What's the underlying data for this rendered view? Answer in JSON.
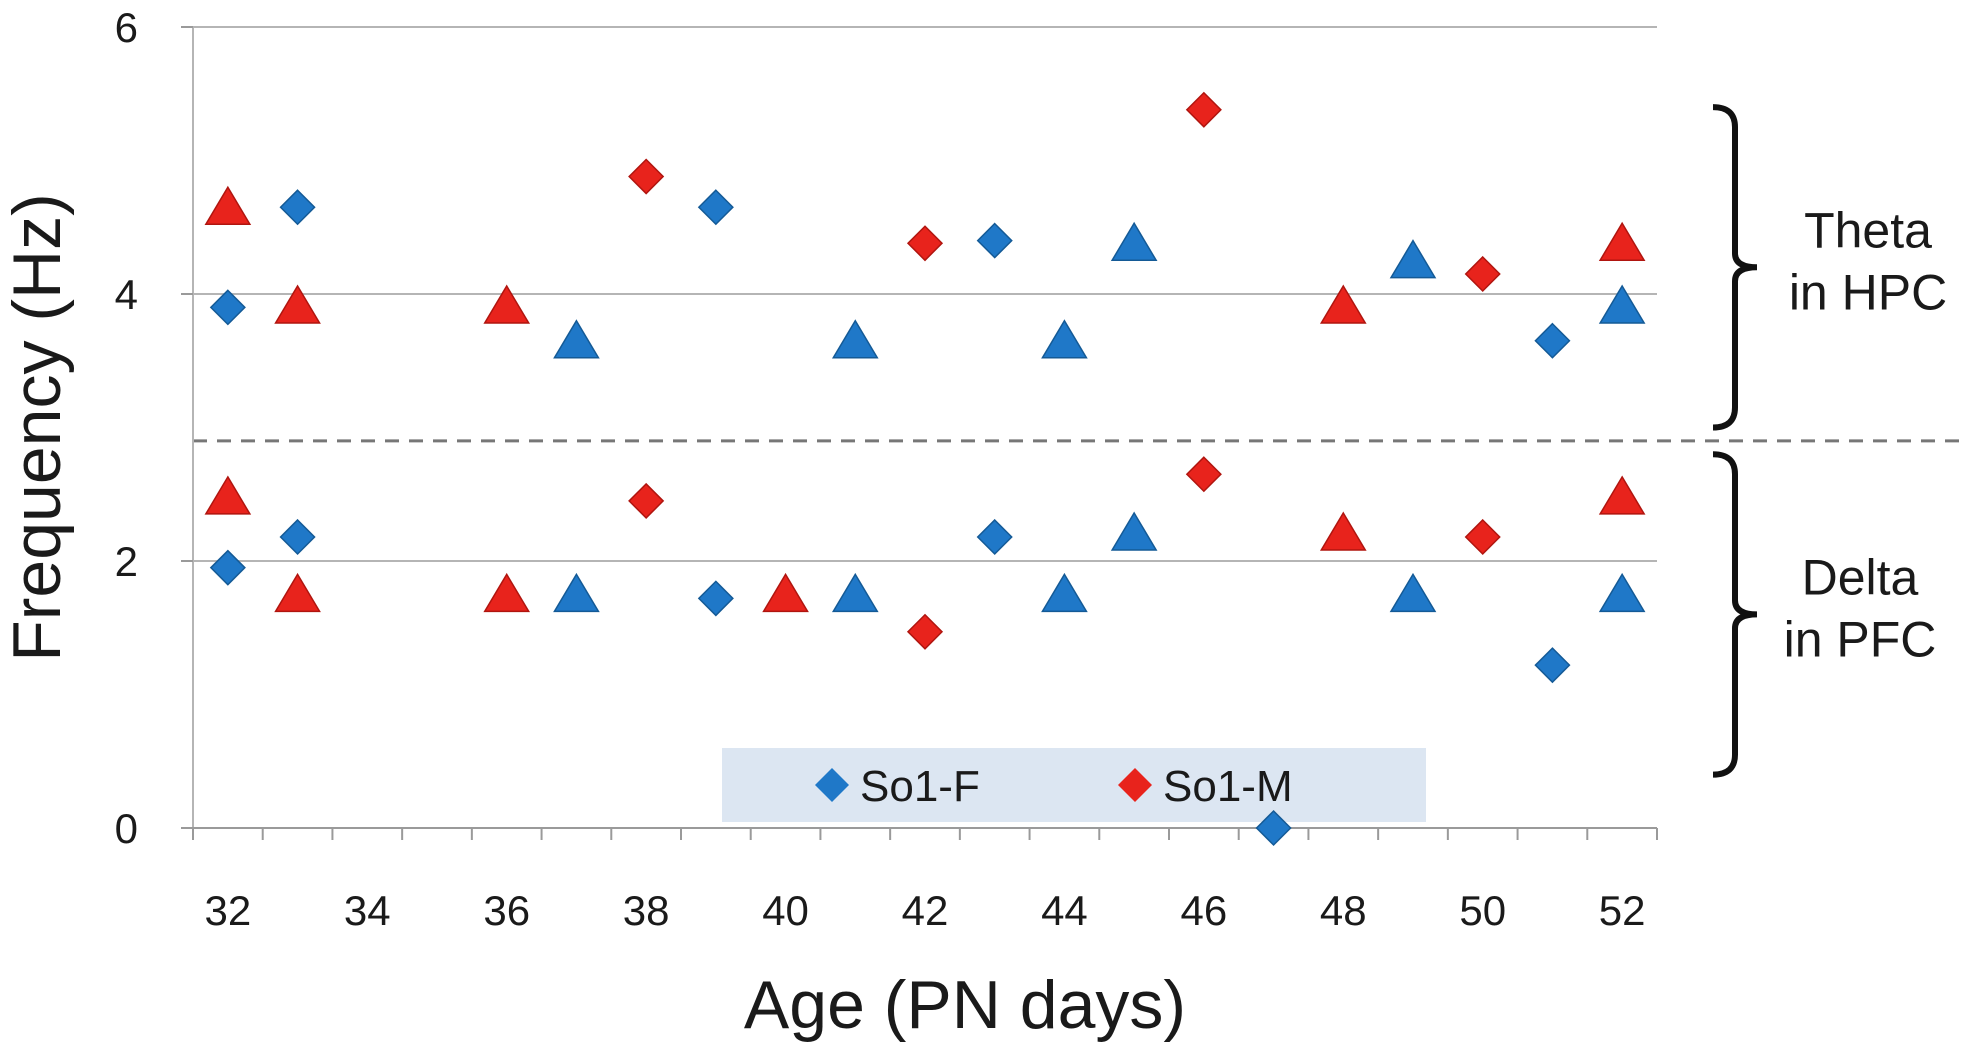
{
  "chart_data": {
    "type": "scatter",
    "xlabel": "Age (PN days)",
    "ylabel": "Frequency (Hz)",
    "xlim": [
      31.5,
      52.5
    ],
    "ylim": [
      0,
      6
    ],
    "x_ticks": [
      "32",
      "34",
      "36",
      "38",
      "40",
      "42",
      "44",
      "46",
      "48",
      "50",
      "52"
    ],
    "y_ticks": [
      "0",
      "2",
      "4",
      "6"
    ],
    "grid": true,
    "threshold_line": 2.9,
    "series": [
      {
        "name": "So1-F",
        "marker": "diamond",
        "color": "#1f78c8",
        "points": [
          [
            32,
            3.9
          ],
          [
            32,
            1.95
          ],
          [
            33,
            4.65
          ],
          [
            33,
            2.18
          ],
          [
            39,
            4.65
          ],
          [
            39,
            1.72
          ],
          [
            43,
            4.4
          ],
          [
            43,
            2.18
          ],
          [
            47,
            0
          ],
          [
            51,
            3.65
          ],
          [
            51,
            1.22
          ]
        ]
      },
      {
        "name": "So1-M",
        "marker": "diamond",
        "color": "#e8231c",
        "points": [
          [
            38,
            4.88
          ],
          [
            38,
            2.45
          ],
          [
            42,
            4.38
          ],
          [
            42,
            1.47
          ],
          [
            46,
            5.38
          ],
          [
            46,
            2.65
          ],
          [
            50,
            4.15
          ],
          [
            50,
            2.18
          ]
        ]
      },
      {
        "name": "",
        "marker": "triangle",
        "color": "#1f78c8",
        "points": [
          [
            37,
            3.62
          ],
          [
            37,
            1.72
          ],
          [
            41,
            3.62
          ],
          [
            41,
            1.72
          ],
          [
            44,
            3.62
          ],
          [
            44,
            1.72
          ],
          [
            45,
            4.35
          ],
          [
            45,
            2.18
          ],
          [
            49,
            4.22
          ],
          [
            49,
            1.72
          ],
          [
            52,
            3.88
          ],
          [
            52,
            1.72
          ]
        ]
      },
      {
        "name": "",
        "marker": "triangle",
        "color": "#e8231c",
        "points": [
          [
            32,
            4.62
          ],
          [
            32,
            2.45
          ],
          [
            33,
            3.88
          ],
          [
            33,
            1.72
          ],
          [
            36,
            3.88
          ],
          [
            36,
            1.72
          ],
          [
            40,
            1.72
          ],
          [
            48,
            3.88
          ],
          [
            48,
            2.18
          ],
          [
            52,
            4.35
          ],
          [
            52,
            2.45
          ]
        ]
      }
    ],
    "legend": {
      "position": "bottom-center",
      "entries": [
        "So1-F",
        "So1-M"
      ]
    },
    "annotations": [
      {
        "lines": [
          "Theta",
          "in HPC"
        ],
        "range": [
          3,
          5.4
        ]
      },
      {
        "lines": [
          "Delta",
          "in PFC"
        ],
        "range": [
          0.4,
          2.8
        ]
      }
    ]
  }
}
